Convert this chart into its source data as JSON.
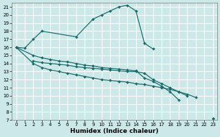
{
  "title": "",
  "xlabel": "Humidex (Indice chaleur)",
  "xlim": [
    -0.5,
    23.5
  ],
  "ylim": [
    7,
    21.5
  ],
  "bg_color": "#cde8e8",
  "line_color": "#1a6b6b",
  "grid_color": "#ffffff",
  "lines": [
    {
      "x": [
        0,
        1,
        2,
        3,
        7,
        9,
        10,
        11,
        12,
        13,
        14,
        15,
        16
      ],
      "y": [
        16.0,
        15.9,
        17.0,
        18.0,
        17.3,
        19.5,
        20.0,
        20.5,
        21.0,
        21.2,
        20.5,
        16.5,
        15.8
      ]
    },
    {
      "x": [
        0,
        2,
        3,
        4,
        5,
        6,
        7,
        8,
        9,
        10,
        11,
        12,
        13,
        14,
        15,
        16,
        17,
        18,
        19,
        20,
        21,
        22,
        23
      ],
      "y": [
        16.0,
        15.0,
        14.7,
        14.5,
        14.3,
        14.2,
        14.0,
        13.8,
        13.7,
        13.5,
        13.4,
        13.3,
        13.2,
        13.1,
        12.2,
        11.8,
        11.2,
        10.5,
        9.5,
        null,
        null,
        null,
        7.2
      ]
    },
    {
      "x": [
        2,
        3,
        4,
        5,
        6,
        7,
        8,
        9,
        10,
        11,
        12,
        13,
        14,
        15,
        16,
        17,
        18,
        19,
        20,
        21,
        22,
        23
      ],
      "y": [
        14.3,
        14.1,
        14.0,
        13.9,
        13.8,
        13.6,
        13.5,
        13.4,
        13.3,
        13.2,
        13.1,
        13.0,
        13.0,
        12.8,
        12.0,
        11.5,
        11.0,
        10.5,
        10.2,
        9.8,
        null,
        null
      ]
    },
    {
      "x": [
        0,
        2,
        3,
        4,
        5,
        6,
        7,
        8,
        9,
        10,
        11,
        12,
        13,
        14,
        15,
        16,
        17,
        18,
        19,
        20,
        21,
        22,
        23
      ],
      "y": [
        16.0,
        14.0,
        13.5,
        13.2,
        13.0,
        12.8,
        12.6,
        12.4,
        12.2,
        12.0,
        11.9,
        11.8,
        11.7,
        11.5,
        11.4,
        11.2,
        11.0,
        10.8,
        10.5,
        10.0,
        null,
        null,
        7.2
      ]
    }
  ]
}
